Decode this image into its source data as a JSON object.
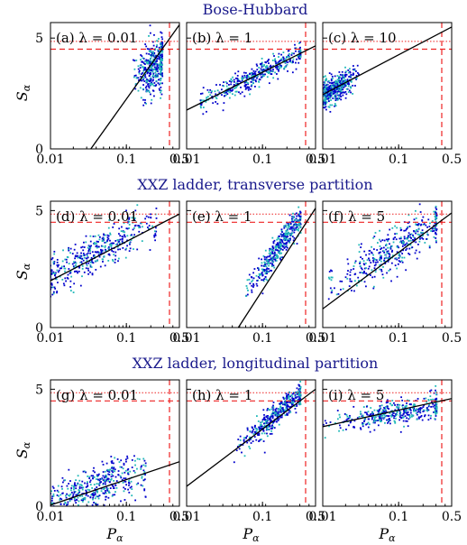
{
  "chart_data": [
    {
      "type": "scatter",
      "id": "a",
      "panel_label": "(a)",
      "lambda_text": "λ = 0.01",
      "row_title": "Bose-Hubbard",
      "x_scale": "log",
      "xlim": [
        0.01,
        0.5
      ],
      "ylim": [
        0,
        5.7
      ],
      "fit_line": {
        "x": [
          0.034,
          0.5
        ],
        "y": [
          0,
          5.6
        ]
      },
      "cloud": {
        "x_range": [
          0.12,
          0.3
        ],
        "x_center": 0.23,
        "y_center": 3.7,
        "y_spread": 0.6,
        "slope": 2.0
      }
    },
    {
      "type": "scatter",
      "id": "b",
      "panel_label": "(b)",
      "lambda_text": "λ = 1",
      "x_scale": "log",
      "xlim": [
        0.01,
        0.5
      ],
      "ylim": [
        0,
        5.7
      ],
      "fit_line": {
        "x": [
          0.01,
          0.5
        ],
        "y": [
          1.75,
          4.65
        ]
      },
      "cloud": {
        "x_range": [
          0.015,
          0.32
        ],
        "x_center": 0.08,
        "y_center": 3.3,
        "y_spread": 0.25,
        "slope": 1.7
      }
    },
    {
      "type": "scatter",
      "id": "c",
      "panel_label": "(c)",
      "lambda_text": "λ = 10",
      "x_scale": "log",
      "xlim": [
        0.01,
        0.5
      ],
      "ylim": [
        0,
        5.7
      ],
      "fit_line": {
        "x": [
          0.01,
          0.5
        ],
        "y": [
          2.45,
          5.5
        ]
      },
      "cloud": {
        "x_range": [
          0.01,
          0.03
        ],
        "x_center": 0.014,
        "y_center": 2.7,
        "y_spread": 0.3,
        "slope": 1.8
      }
    },
    {
      "type": "scatter",
      "id": "d",
      "panel_label": "(d)",
      "lambda_text": "λ = 0.01",
      "row_title": "XXZ ladder, transverse partition",
      "x_scale": "log",
      "xlim": [
        0.01,
        0.5
      ],
      "ylim": [
        0,
        5.4
      ],
      "fit_line": {
        "x": [
          0.01,
          0.5
        ],
        "y": [
          2.0,
          4.85
        ]
      },
      "cloud": {
        "x_range": [
          0.01,
          0.25
        ],
        "x_center": 0.04,
        "y_center": 3.2,
        "y_spread": 0.45,
        "slope": 1.7
      }
    },
    {
      "type": "scatter",
      "id": "e",
      "panel_label": "(e)",
      "lambda_text": "λ = 1",
      "x_scale": "log",
      "xlim": [
        0.01,
        0.5
      ],
      "ylim": [
        0,
        5.4
      ],
      "fit_line": {
        "x": [
          0.048,
          0.5
        ],
        "y": [
          0,
          5.1
        ]
      },
      "cloud": {
        "x_range": [
          0.06,
          0.32
        ],
        "x_center": 0.17,
        "y_center": 3.5,
        "y_spread": 0.3,
        "slope": 4.5
      }
    },
    {
      "type": "scatter",
      "id": "f",
      "panel_label": "(f)",
      "lambda_text": "λ = 5",
      "x_scale": "log",
      "xlim": [
        0.01,
        0.5
      ],
      "ylim": [
        0,
        5.4
      ],
      "fit_line": {
        "x": [
          0.01,
          0.5
        ],
        "y": [
          0.8,
          4.9
        ]
      },
      "cloud": {
        "x_range": [
          0.012,
          0.32
        ],
        "x_center": 0.09,
        "y_center": 3.4,
        "y_spread": 0.45,
        "slope": 2.0
      }
    },
    {
      "type": "scatter",
      "id": "g",
      "panel_label": "(g)",
      "lambda_text": "λ = 0.01",
      "row_title": "XXZ ladder, longitudinal partition",
      "x_scale": "log",
      "xlim": [
        0.01,
        0.5
      ],
      "ylim": [
        0,
        5.4
      ],
      "fit_line": {
        "x": [
          0.01,
          0.5
        ],
        "y": [
          0.05,
          1.9
        ]
      },
      "cloud": {
        "x_range": [
          0.01,
          0.18
        ],
        "x_center": 0.04,
        "y_center": 0.8,
        "y_spread": 0.45,
        "slope": 1.1
      }
    },
    {
      "type": "scatter",
      "id": "h",
      "panel_label": "(h)",
      "lambda_text": "λ = 1",
      "x_scale": "log",
      "xlim": [
        0.01,
        0.5
      ],
      "ylim": [
        0,
        5.4
      ],
      "fit_line": {
        "x": [
          0.01,
          0.5
        ],
        "y": [
          0.85,
          5.0
        ]
      },
      "cloud": {
        "x_range": [
          0.04,
          0.32
        ],
        "x_center": 0.15,
        "y_center": 3.9,
        "y_spread": 0.25,
        "slope": 2.8
      }
    },
    {
      "type": "scatter",
      "id": "i",
      "panel_label": "(i)",
      "lambda_text": "λ = 5",
      "x_scale": "log",
      "xlim": [
        0.01,
        0.5
      ],
      "ylim": [
        0,
        5.4
      ],
      "fit_line": {
        "x": [
          0.01,
          0.5
        ],
        "y": [
          3.4,
          4.6
        ]
      },
      "cloud": {
        "x_range": [
          0.01,
          0.32
        ],
        "x_center": 0.1,
        "y_center": 4.0,
        "y_spread": 0.25,
        "slope": 0.5
      }
    }
  ],
  "shared": {
    "dashed_hline_y": 4.5,
    "dotted_hline_y": 4.85,
    "dashed_vline_x": 0.37,
    "xticks": [
      "0.01",
      "0.1",
      "0.5"
    ],
    "xtick_values": [
      0.01,
      0.1,
      0.5
    ],
    "yticks": [
      "0",
      "5"
    ],
    "ytick_values": [
      0,
      5
    ],
    "ylabel_main": "S",
    "ylabel_sub": "α",
    "xlabel_main": "P",
    "xlabel_sub": "α",
    "colors": {
      "blue": "#0000cc",
      "cyan": "#20b8b8",
      "line": "#000000",
      "ref": "#ee2222",
      "title": "#1a1a8c"
    }
  }
}
